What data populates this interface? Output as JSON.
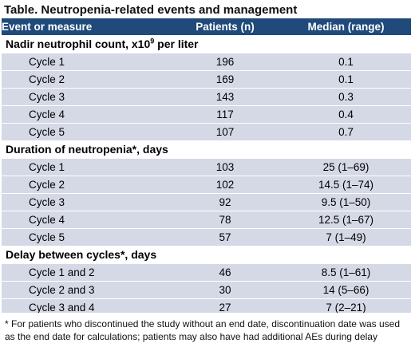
{
  "title": "Table. Neutropenia-related events and management",
  "headers": [
    "Event or measure",
    "Patients (n)",
    "Median (range)"
  ],
  "groups": [
    {
      "label_pre": "Nadir neutrophil count, x10",
      "label_sup": "9",
      "label_post": " per liter",
      "rows": [
        {
          "name": "Cycle 1",
          "patients": "196",
          "median": "0.1"
        },
        {
          "name": "Cycle 2",
          "patients": "169",
          "median": "0.1"
        },
        {
          "name": "Cycle 3",
          "patients": "143",
          "median": "0.3"
        },
        {
          "name": "Cycle 4",
          "patients": "117",
          "median": "0.4"
        },
        {
          "name": "Cycle 5",
          "patients": "107",
          "median": "0.7"
        }
      ]
    },
    {
      "label_pre": "Duration of neutropenia*, days",
      "rows": [
        {
          "name": "Cycle 1",
          "patients": "103",
          "median": "25 (1–69)"
        },
        {
          "name": "Cycle 2",
          "patients": "102",
          "median": "14.5 (1–74)"
        },
        {
          "name": "Cycle 3",
          "patients": "92",
          "median": "9.5 (1–50)"
        },
        {
          "name": "Cycle 4",
          "patients": "78",
          "median": "12.5 (1–67)"
        },
        {
          "name": "Cycle 5",
          "patients": "57",
          "median": "7 (1–49)"
        }
      ]
    },
    {
      "label_pre": "Delay between cycles*, days",
      "rows": [
        {
          "name": "Cycle 1 and 2",
          "patients": "46",
          "median": "8.5 (1–61)"
        },
        {
          "name": "Cycle 2 and 3",
          "patients": "30",
          "median": "14 (5–66)"
        },
        {
          "name": "Cycle 3 and 4",
          "patients": "27",
          "median": "7 (2–21)"
        }
      ]
    }
  ],
  "footnote": "* For patients who discontinued the study without an end date, discontinuation date was used as the end date for calculations; patients may also have had additional AEs during delay",
  "colors": {
    "header_bg": "#1f4a7a",
    "row_bg": "#d5d9e6",
    "text": "#000000"
  }
}
